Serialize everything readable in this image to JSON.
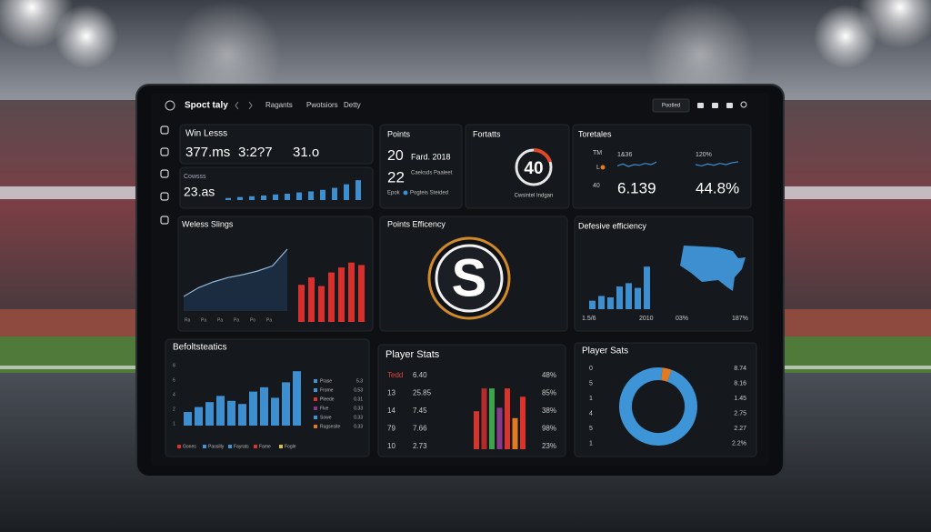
{
  "app": {
    "name": "Spoct taly",
    "nav": [
      "Ragants",
      "Pwotsiors",
      "Detty"
    ],
    "button": "Pootled"
  },
  "win_loss": {
    "title": "Win Lesss",
    "stats": [
      "377.ms",
      "3:2?7",
      "31.o"
    ],
    "label": "Cowsss",
    "value": "23.as",
    "bars": [
      8,
      12,
      15,
      18,
      22,
      25,
      30,
      34,
      40,
      48,
      62,
      78
    ]
  },
  "points": {
    "title": "Points",
    "value1": "20",
    "text1": "Fard. 2018",
    "value2": "22",
    "note": "Caeksds Paaleet",
    "legend": [
      "Epok",
      "Pogteis Steided"
    ]
  },
  "fortatts": {
    "title": "Fortatts",
    "gauge": "40",
    "caption": "Cwsintel Indgan"
  },
  "totals": {
    "title": "Toretales",
    "side_labels": [
      "TM",
      "L",
      "40"
    ],
    "cards": [
      {
        "label": "1&36",
        "value": "6.139",
        "trend": [
          40,
          55,
          35,
          50,
          45,
          60,
          50,
          70
        ]
      },
      {
        "label": "120%",
        "value": "44.8%",
        "trend": [
          50,
          40,
          55,
          45,
          60,
          50,
          65,
          72
        ]
      }
    ]
  },
  "win_slings": {
    "title": "Weless Slings",
    "area": [
      20,
      32,
      40,
      46,
      50,
      55,
      62,
      85
    ],
    "bars": [
      60,
      72,
      58,
      80,
      88,
      96,
      92
    ],
    "labels": [
      "Ra",
      "Pa",
      "Pa",
      "Pa",
      "Po",
      "Pa"
    ]
  },
  "efficiency": {
    "title": "Points Efficency",
    "logo": "S"
  },
  "defense": {
    "title": "Defesive efficiency",
    "bars": [
      18,
      28,
      25,
      48,
      55,
      45,
      90
    ],
    "labels": [
      "1.5/6",
      "2010",
      "03%",
      "187%"
    ]
  },
  "stats": {
    "title": "Befoltsteatics",
    "axis_labels": [
      "8",
      "6",
      "4",
      "2",
      "1"
    ],
    "bars": [
      22,
      30,
      38,
      48,
      40,
      35,
      55,
      62,
      45,
      70,
      88
    ],
    "legend": [
      {
        "name": "Prase",
        "value": "5.3",
        "color": "#3d94d6"
      },
      {
        "name": "Frome",
        "value": "0.53",
        "color": "#3d94d6"
      },
      {
        "name": "Pleede",
        "value": "0.31",
        "color": "#d8342c"
      },
      {
        "name": "Flve",
        "value": "0.33",
        "color": "#8a3a8a"
      },
      {
        "name": "Sowe",
        "value": "0.33",
        "color": "#3d94d6"
      },
      {
        "name": "Rugsesite",
        "value": "0.33",
        "color": "#e07b24"
      }
    ],
    "footer": [
      {
        "name": "Gones",
        "color": "#d8342c"
      },
      {
        "name": "Paosilly",
        "color": "#3d94d6"
      },
      {
        "name": "Fayrats",
        "color": "#3d94d6"
      },
      {
        "name": "Fame",
        "color": "#d8342c"
      },
      {
        "name": "Fogle",
        "color": "#d9c13a"
      }
    ]
  },
  "player_stats": {
    "title": "Player Stats",
    "rows": [
      [
        "Tedd",
        "6.40",
        "48%"
      ],
      [
        "13",
        "25.85",
        "85%"
      ],
      [
        "14",
        "7.45",
        "38%"
      ],
      [
        "79",
        "7.66",
        "98%"
      ],
      [
        "10",
        "2.73",
        "23%"
      ]
    ],
    "bars": [
      {
        "color": "#d8342c",
        "value": 55
      },
      {
        "color": "#b52a2a",
        "value": 88
      },
      {
        "color": "#3fa34d",
        "value": 88
      },
      {
        "color": "#8a3a8a",
        "value": 60
      },
      {
        "color": "#d8342c",
        "value": 88
      },
      {
        "color": "#e07b24",
        "value": 45
      },
      {
        "color": "#d8342c",
        "value": 76
      }
    ]
  },
  "player_sats": {
    "title": "Player Sats",
    "left": [
      "0",
      "5",
      "1",
      "4",
      "5",
      "1"
    ],
    "right": [
      "8.74",
      "8.16",
      "1.45",
      "2.75",
      "2.27",
      "2.2%"
    ],
    "donut": [
      {
        "color": "#3d94d6",
        "value": 96
      },
      {
        "color": "#e07b24",
        "value": 4
      }
    ]
  }
}
